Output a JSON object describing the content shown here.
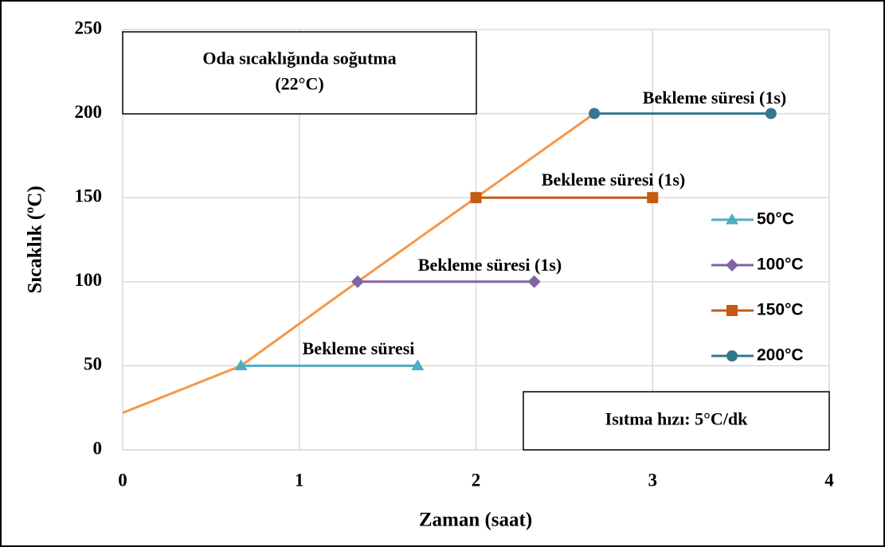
{
  "chart_data": {
    "type": "line",
    "x_label": "Zaman (saat)",
    "y_label": "Sıcaklık (ºC)",
    "xlim": [
      0,
      4
    ],
    "xticks": [
      0,
      1,
      2,
      3,
      4
    ],
    "ylim": [
      0,
      250
    ],
    "yticks": [
      0,
      50,
      100,
      150,
      200,
      250
    ],
    "grid": true,
    "legend": "right",
    "series": [
      {
        "color": "#f79646",
        "x": [
          0,
          0.67,
          1.33,
          2,
          2.67
        ],
        "values": [
          22,
          50,
          100,
          150,
          200
        ]
      },
      {
        "name": "50°C",
        "color": "#4bacc6",
        "marker": "triangle",
        "x": [
          0.67,
          1.67
        ],
        "values": [
          50,
          50
        ]
      },
      {
        "name": "100°C",
        "color": "#8064a2",
        "marker": "diamond",
        "x": [
          1.33,
          2.33
        ],
        "values": [
          100,
          100
        ]
      },
      {
        "name": "150°C",
        "color": "#c55a11",
        "marker": "square",
        "x": [
          2,
          3
        ],
        "values": [
          150,
          150
        ]
      },
      {
        "name": "200°C",
        "color": "#31788c",
        "marker": "circle",
        "x": [
          2.67,
          3.67
        ],
        "values": [
          200,
          200
        ]
      }
    ],
    "annotations": [
      "Bekleme süresi",
      "Bekleme süresi (1s)",
      "Bekleme süresi (1s)",
      "Bekleme süresi (1s)"
    ],
    "boxes": [
      [
        "Oda sıcaklığında soğutma",
        "(22°C)"
      ],
      [
        "Isıtma hızı: 5°C/dk"
      ]
    ]
  }
}
